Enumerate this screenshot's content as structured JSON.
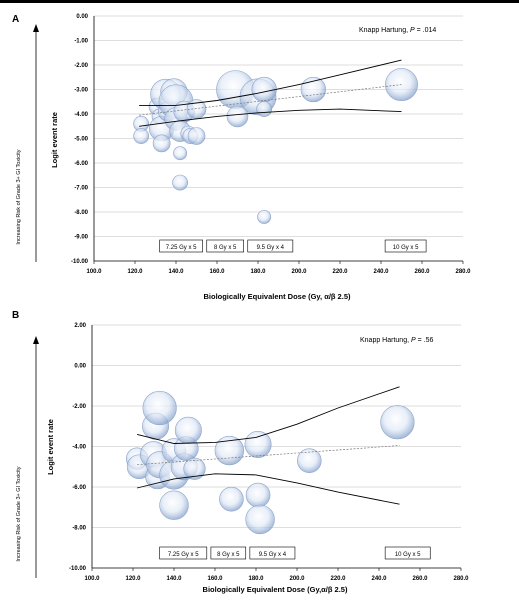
{
  "chart_data": [
    {
      "type": "scatter",
      "panel": "A",
      "annotation": "Knapp Hartung, P = .014",
      "annotation_text": "Knapp Hartung, ",
      "annotation_p": "P",
      "annotation_val": " = .014",
      "xlabel": "Biologically Equivalent Dose (Gy, α/β 2.5)",
      "ylabel": "Logit event rate",
      "side_label": "Increasing Risk of Grade 3+ GI Toxicity",
      "xlim": [
        100,
        280
      ],
      "ylim": [
        -10,
        0
      ],
      "xticks": [
        "100.0",
        "120.0",
        "140.0",
        "160.0",
        "180.0",
        "200.0",
        "220.0",
        "240.0",
        "260.0",
        "280.0"
      ],
      "yticks": [
        "0.00",
        "-1.00",
        "-2.00",
        "-3.00",
        "-4.00",
        "-5.00",
        "-6.00",
        "-7.00",
        "-8.00",
        "-9.00",
        "-10.00"
      ],
      "dose_labels": [
        {
          "text": "7.25 Gy x 5",
          "x0": 132,
          "x1": 153
        },
        {
          "text": "8 Gy x 5",
          "x0": 155,
          "x1": 173
        },
        {
          "text": "9.5 Gy x 4",
          "x0": 175,
          "x1": 197
        },
        {
          "text": "10 Gy x 5",
          "x0": 242,
          "x1": 262
        }
      ],
      "points": [
        {
          "x": 123,
          "y": -4.4,
          "s": 0.8
        },
        {
          "x": 123,
          "y": -4.9,
          "s": 0.8
        },
        {
          "x": 131,
          "y": -3.7,
          "s": 0.9
        },
        {
          "x": 132,
          "y": -4.1,
          "s": 0.8
        },
        {
          "x": 133,
          "y": -4.6,
          "s": 1.3
        },
        {
          "x": 133,
          "y": -5.2,
          "s": 0.9
        },
        {
          "x": 135,
          "y": -3.2,
          "s": 1.6
        },
        {
          "x": 136,
          "y": -3.9,
          "s": 1.0
        },
        {
          "x": 139,
          "y": -3.1,
          "s": 1.4
        },
        {
          "x": 140,
          "y": -3.5,
          "s": 1.8
        },
        {
          "x": 140,
          "y": -4.2,
          "s": 1.2
        },
        {
          "x": 142,
          "y": -4.7,
          "s": 1.1
        },
        {
          "x": 144,
          "y": -3.9,
          "s": 1.1
        },
        {
          "x": 146,
          "y": -4.8,
          "s": 0.8
        },
        {
          "x": 147,
          "y": -4.9,
          "s": 0.8
        },
        {
          "x": 150,
          "y": -4.9,
          "s": 0.9
        },
        {
          "x": 150,
          "y": -3.8,
          "s": 1.0
        },
        {
          "x": 142,
          "y": -5.6,
          "s": 0.7
        },
        {
          "x": 142,
          "y": -6.8,
          "s": 0.8
        },
        {
          "x": 169,
          "y": -3.0,
          "s": 2.0
        },
        {
          "x": 170,
          "y": -4.1,
          "s": 1.1
        },
        {
          "x": 180,
          "y": -3.3,
          "s": 1.9
        },
        {
          "x": 183,
          "y": -3.0,
          "s": 1.3
        },
        {
          "x": 183,
          "y": -3.8,
          "s": 0.8
        },
        {
          "x": 183,
          "y": -8.2,
          "s": 0.7
        },
        {
          "x": 207,
          "y": -3.0,
          "s": 1.3
        },
        {
          "x": 250,
          "y": -2.8,
          "s": 1.7
        }
      ],
      "fit_line": [
        [
          122,
          -4.05
        ],
        [
          250,
          -2.8
        ]
      ],
      "ci_upper": [
        [
          122,
          -3.65
        ],
        [
          140,
          -3.65
        ],
        [
          160,
          -3.45
        ],
        [
          180,
          -3.15
        ],
        [
          200,
          -2.8
        ],
        [
          220,
          -2.4
        ],
        [
          250,
          -1.8
        ]
      ],
      "ci_lower": [
        [
          122,
          -4.5
        ],
        [
          140,
          -4.3
        ],
        [
          160,
          -4.1
        ],
        [
          180,
          -3.95
        ],
        [
          200,
          -3.85
        ],
        [
          220,
          -3.8
        ],
        [
          250,
          -3.9
        ]
      ]
    },
    {
      "type": "scatter",
      "panel": "B",
      "annotation": "Knapp Hartung, P = .56",
      "annotation_text": "Knapp Hartung, ",
      "annotation_p": "P",
      "annotation_val": " = .56",
      "xlabel": "Biologically Equivalent Dose (Gy,α/β 2.5)",
      "ylabel": "Logit event rate",
      "side_label": "Increasing Risk of Grade 3+ GI Toxicity",
      "xlim": [
        100,
        280
      ],
      "ylim": [
        -10,
        2
      ],
      "xticks": [
        "100.0",
        "120.0",
        "140.0",
        "160.0",
        "180.0",
        "200.0",
        "220.0",
        "240.0",
        "260.0",
        "280.0"
      ],
      "yticks": [
        "2.00",
        "0.00",
        "-2.00",
        "-4.00",
        "-6.00",
        "-8.00",
        "-10.00"
      ],
      "dose_labels": [
        {
          "text": "7.25 Gy x 5",
          "x0": 133,
          "x1": 156
        },
        {
          "text": "8 Gy x 5",
          "x0": 158,
          "x1": 175
        },
        {
          "text": "9.5 Gy x 4",
          "x0": 177,
          "x1": 199
        },
        {
          "text": "10 Gy x 5",
          "x0": 243,
          "x1": 265
        }
      ],
      "points": [
        {
          "x": 122,
          "y": -4.6,
          "s": 0.9
        },
        {
          "x": 123,
          "y": -5.0,
          "s": 1.0
        },
        {
          "x": 130,
          "y": -4.4,
          "s": 1.1
        },
        {
          "x": 131,
          "y": -3.0,
          "s": 1.1
        },
        {
          "x": 132,
          "y": -5.5,
          "s": 1.0
        },
        {
          "x": 133,
          "y": -2.1,
          "s": 1.4
        },
        {
          "x": 133,
          "y": -4.9,
          "s": 1.1
        },
        {
          "x": 140,
          "y": -4.2,
          "s": 1.0
        },
        {
          "x": 140,
          "y": -5.4,
          "s": 1.2
        },
        {
          "x": 140,
          "y": -6.9,
          "s": 1.2
        },
        {
          "x": 145,
          "y": -5.0,
          "s": 1.1
        },
        {
          "x": 146,
          "y": -4.1,
          "s": 1.0
        },
        {
          "x": 147,
          "y": -3.2,
          "s": 1.1
        },
        {
          "x": 150,
          "y": -5.1,
          "s": 0.9
        },
        {
          "x": 167,
          "y": -4.2,
          "s": 1.2
        },
        {
          "x": 168,
          "y": -6.6,
          "s": 1.0
        },
        {
          "x": 181,
          "y": -3.9,
          "s": 1.1
        },
        {
          "x": 181,
          "y": -6.4,
          "s": 1.0
        },
        {
          "x": 182,
          "y": -7.6,
          "s": 1.2
        },
        {
          "x": 206,
          "y": -4.7,
          "s": 1.0
        },
        {
          "x": 249,
          "y": -2.8,
          "s": 1.4
        }
      ],
      "fit_line": [
        [
          122,
          -4.9
        ],
        [
          250,
          -3.95
        ]
      ],
      "ci_upper": [
        [
          122,
          -3.4
        ],
        [
          140,
          -3.85
        ],
        [
          160,
          -3.8
        ],
        [
          180,
          -3.55
        ],
        [
          200,
          -2.9
        ],
        [
          220,
          -2.1
        ],
        [
          250,
          -1.05
        ]
      ],
      "ci_lower": [
        [
          122,
          -6.05
        ],
        [
          140,
          -5.6
        ],
        [
          160,
          -5.35
        ],
        [
          180,
          -5.4
        ],
        [
          200,
          -5.8
        ],
        [
          220,
          -6.25
        ],
        [
          250,
          -6.85
        ]
      ]
    }
  ]
}
